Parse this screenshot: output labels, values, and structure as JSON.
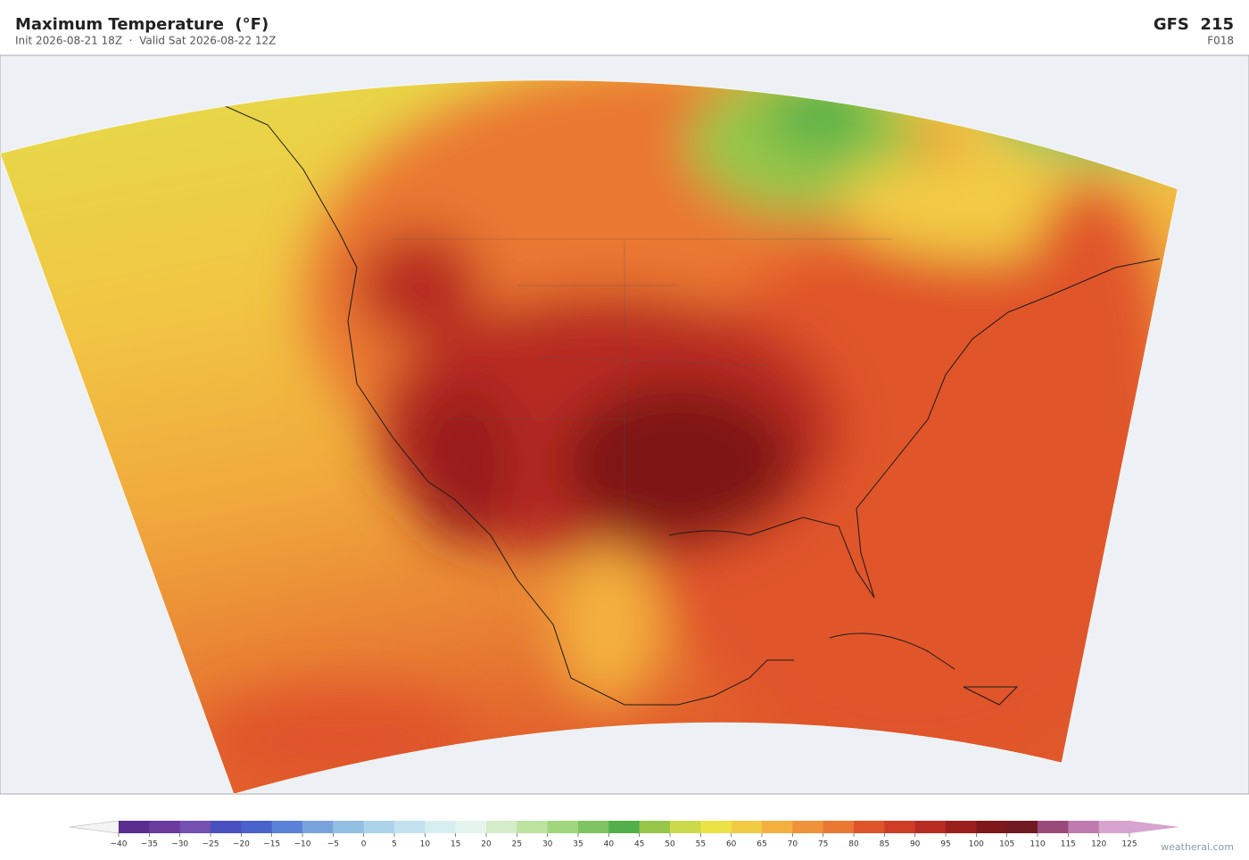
{
  "header": {
    "title": "Maximum Temperature  (°F)",
    "subtitle": "Init 2026-08-21 18Z  ·  Valid Sat 2026-08-22 12Z",
    "model": "GFS  215",
    "forecast_hour": "F018"
  },
  "colorbar": {
    "ticks": [
      {
        "value": -40,
        "label": "−40"
      },
      {
        "value": -35,
        "label": "−35"
      },
      {
        "value": -30,
        "label": "−30"
      },
      {
        "value": -25,
        "label": "−25"
      },
      {
        "value": -20,
        "label": "−20"
      },
      {
        "value": -15,
        "label": "−15"
      },
      {
        "value": -10,
        "label": "−10"
      },
      {
        "value": -5,
        "label": "−5"
      },
      0,
      5,
      10,
      15,
      20,
      25,
      30,
      35,
      40,
      45,
      50,
      55,
      60,
      65,
      70,
      75,
      80,
      85,
      90,
      95,
      100,
      105,
      110,
      115,
      120,
      125
    ],
    "colors": [
      "#5b2d8e",
      "#6a3a9c",
      "#7450b0",
      "#4a4fc0",
      "#4a63cc",
      "#5a82d6",
      "#7aa3dd",
      "#93bfe2",
      "#acd3ea",
      "#c2e2ef",
      "#d6eef2",
      "#e6f4ee",
      "#d4ecc8",
      "#bde3a0",
      "#9fd67e",
      "#7ec462",
      "#52b04a",
      "#96c64a",
      "#cbd94a",
      "#ebe346",
      "#f2cb45",
      "#f3b03e",
      "#ef933a",
      "#ea7732",
      "#e0542a",
      "#cf3d26",
      "#b72b22",
      "#9a1f1d",
      "#7e1719",
      "#701a24",
      "#9a4a7a",
      "#bf7bb0",
      "#d7a3cf"
    ]
  },
  "footer": {
    "watermark": "weatherai.com"
  }
}
